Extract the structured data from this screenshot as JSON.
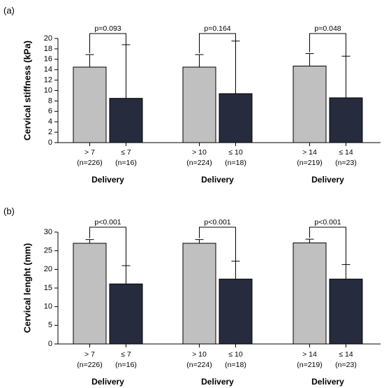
{
  "chart_data": [
    {
      "type": "bar",
      "panel_label": "(a)",
      "ylabel": "Cervical stiffness (kPa)",
      "ylim": [
        0,
        20
      ],
      "yticks": [
        0,
        2,
        4,
        6,
        8,
        10,
        12,
        14,
        16,
        18,
        20
      ],
      "grid": false,
      "groups": [
        {
          "xlabel": "Delivery",
          "p_value": "p=0.093",
          "bars": [
            {
              "label": "> 7",
              "n": "(n=226)",
              "value": 14.5,
              "error": 2.4,
              "color": "#c0c0c0"
            },
            {
              "label": "≤ 7",
              "n": "(n=16)",
              "value": 8.5,
              "error": 10.3,
              "color": "#262b3e"
            }
          ]
        },
        {
          "xlabel": "Delivery",
          "p_value": "p=0.164",
          "bars": [
            {
              "label": "> 10",
              "n": "(n=224)",
              "value": 14.5,
              "error": 2.4,
              "color": "#c0c0c0"
            },
            {
              "label": "≤ 10",
              "n": "(n=18)",
              "value": 9.4,
              "error": 10.1,
              "color": "#262b3e"
            }
          ]
        },
        {
          "xlabel": "Delivery",
          "p_value": "p=0.048",
          "bars": [
            {
              "label": "> 14",
              "n": "(n=219)",
              "value": 14.7,
              "error": 2.4,
              "color": "#c0c0c0"
            },
            {
              "label": "≤ 14",
              "n": "(n=23)",
              "value": 8.6,
              "error": 8.0,
              "color": "#262b3e"
            }
          ]
        }
      ]
    },
    {
      "type": "bar",
      "panel_label": "(b)",
      "ylabel": "Cervical lenght (mm)",
      "ylim": [
        0,
        30
      ],
      "yticks": [
        0,
        5,
        10,
        15,
        20,
        25,
        30
      ],
      "grid": false,
      "groups": [
        {
          "xlabel": "Delivery",
          "p_value": "p<0.001",
          "bars": [
            {
              "label": "> 7",
              "n": "(n=226)",
              "value": 27.0,
              "error": 1.0,
              "color": "#c0c0c0"
            },
            {
              "label": "≤ 7",
              "n": "(n=16)",
              "value": 16.1,
              "error": 4.9,
              "color": "#262b3e"
            }
          ]
        },
        {
          "xlabel": "Delivery",
          "p_value": "p<0.001",
          "bars": [
            {
              "label": "> 10",
              "n": "(n=224)",
              "value": 27.0,
              "error": 1.0,
              "color": "#c0c0c0"
            },
            {
              "label": "≤ 10",
              "n": "(n=18)",
              "value": 17.4,
              "error": 4.8,
              "color": "#262b3e"
            }
          ]
        },
        {
          "xlabel": "Delivery",
          "p_value": "p<0.001",
          "bars": [
            {
              "label": "> 14",
              "n": "(n=219)",
              "value": 27.1,
              "error": 1.0,
              "color": "#c0c0c0"
            },
            {
              "label": "≤ 14",
              "n": "(n=23)",
              "value": 17.4,
              "error": 3.9,
              "color": "#262b3e"
            }
          ]
        }
      ]
    }
  ]
}
